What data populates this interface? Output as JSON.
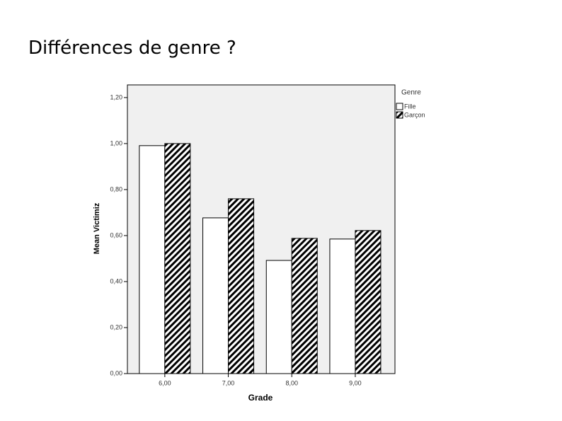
{
  "slide_title": "Différences de genre ?",
  "chart_data": {
    "type": "bar",
    "x_label": "Grade",
    "y_label": "Mean Victimiz",
    "legend_title": "Genre",
    "categories": [
      "6,00",
      "7,00",
      "8,00",
      "9,00"
    ],
    "series": [
      {
        "name": "Fille",
        "color": "#ffffff",
        "hatch": false,
        "values": [
          0.991,
          0.677,
          0.492,
          0.585
        ]
      },
      {
        "name": "Garçon",
        "color": "#000000",
        "hatch": true,
        "values": [
          1.0,
          0.76,
          0.588,
          0.622
        ]
      }
    ],
    "ylim": [
      0,
      1.255
    ],
    "yticks": [
      {
        "value": 0,
        "label": "0,00"
      },
      {
        "value": 0.2,
        "label": "0,20"
      },
      {
        "value": 0.4,
        "label": "0,40"
      },
      {
        "value": 0.6,
        "label": "0,60"
      },
      {
        "value": 0.8,
        "label": "0,80"
      },
      {
        "value": 1.0,
        "label": "1,00"
      },
      {
        "value": 1.2,
        "label": "1,20"
      }
    ],
    "background": "#f0f0f0"
  }
}
